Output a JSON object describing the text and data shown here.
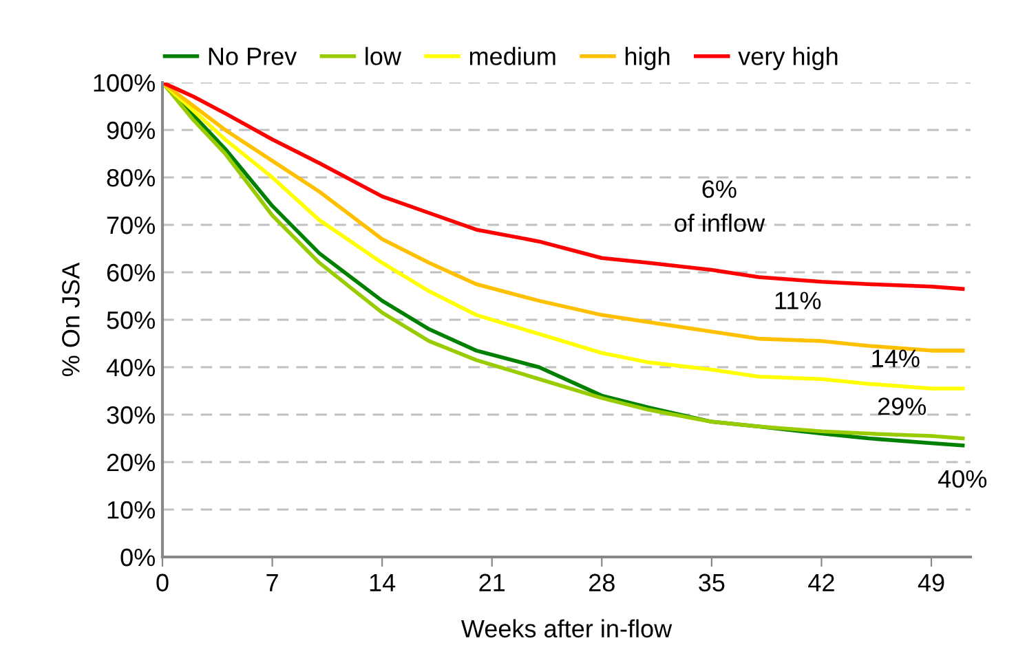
{
  "chart_data": {
    "type": "line",
    "xlabel": "Weeks after in-flow",
    "ylabel": "% On JSA",
    "x": [
      0,
      2,
      4,
      7,
      10,
      14,
      17,
      20,
      24,
      28,
      31,
      35,
      38,
      42,
      45,
      49,
      51
    ],
    "series": [
      {
        "name": "No Prev",
        "color": "#008000",
        "values": [
          100,
          93,
          86,
          74,
          64,
          54,
          48,
          43.5,
          40,
          34,
          31.5,
          28.5,
          27.5,
          26,
          25,
          24,
          23.5
        ]
      },
      {
        "name": "low",
        "color": "#99cc00",
        "values": [
          100,
          92,
          85,
          72,
          62,
          51.5,
          45.5,
          41.5,
          37.5,
          33.5,
          31,
          28.5,
          27.5,
          26.5,
          26,
          25.5,
          25
        ]
      },
      {
        "name": "medium",
        "color": "#ffff00",
        "values": [
          100,
          94,
          88,
          80,
          71,
          62,
          56,
          51,
          47,
          43,
          41,
          39.5,
          38,
          37.5,
          36.5,
          35.5,
          35.5
        ]
      },
      {
        "name": "high",
        "color": "#ffc000",
        "values": [
          100,
          95,
          90,
          83.5,
          77,
          67,
          62,
          57.5,
          54,
          51,
          49.5,
          47.5,
          46,
          45.5,
          44.5,
          43.5,
          43.5
        ]
      },
      {
        "name": "very high",
        "color": "#ff0000",
        "values": [
          100,
          97,
          93.5,
          88,
          83,
          76,
          72.5,
          69,
          66.5,
          63,
          62,
          60.5,
          59,
          58,
          57.5,
          57,
          56.5
        ]
      }
    ],
    "xlim": [
      0,
      51.5
    ],
    "xticks": [
      0,
      7,
      14,
      21,
      28,
      35,
      42,
      49
    ],
    "ylim": [
      0,
      100
    ],
    "yticks": [
      {
        "value": 0,
        "label": "0%"
      },
      {
        "value": 10,
        "label": "10%"
      },
      {
        "value": 20,
        "label": "20%"
      },
      {
        "value": 30,
        "label": "30%"
      },
      {
        "value": 40,
        "label": "40%"
      },
      {
        "value": 50,
        "label": "50%"
      },
      {
        "value": 60,
        "label": "60%"
      },
      {
        "value": 70,
        "label": "70%"
      },
      {
        "value": 80,
        "label": "80%"
      },
      {
        "value": 90,
        "label": "90%"
      },
      {
        "value": 100,
        "label": "100%"
      }
    ],
    "grid": "y",
    "legend": "top",
    "marker": "none",
    "line_style": "solid",
    "annotations": [
      "6%\nof inflow",
      "11%",
      "14%",
      "29%",
      "40%"
    ]
  }
}
